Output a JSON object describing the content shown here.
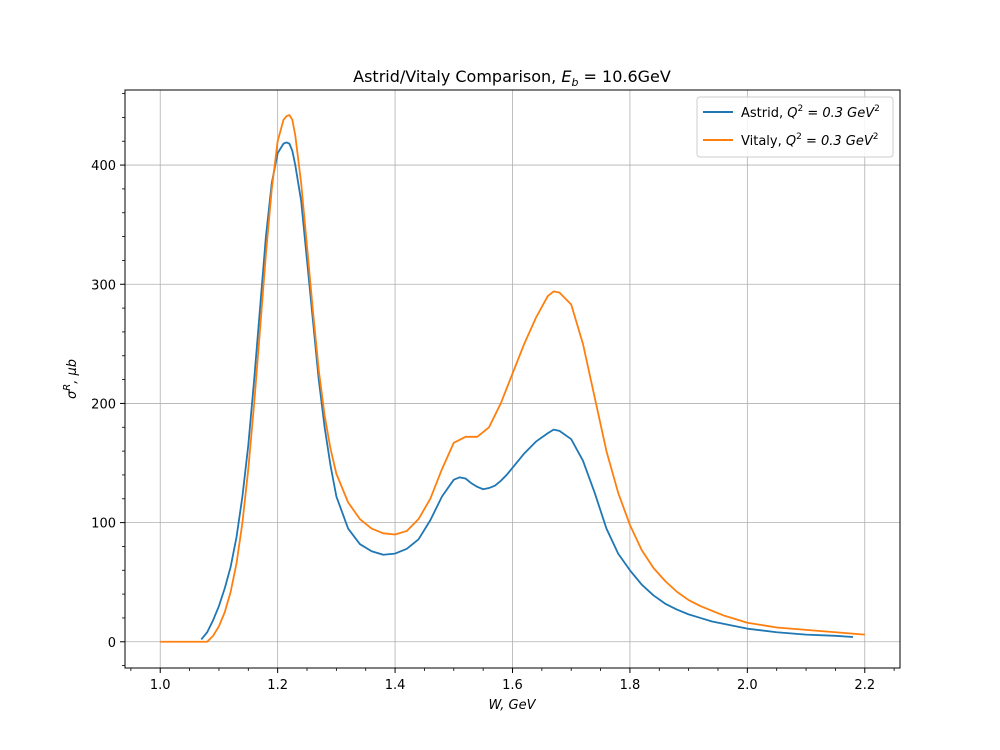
{
  "chart_data": {
    "type": "line",
    "title": "Astrid/Vitaly Comparison, E_b = 10.6GeV",
    "title_parts": {
      "prefix": "Astrid/Vitaly Comparison, ",
      "sym": "E",
      "sub": "b",
      "suffix": " = 10.6GeV"
    },
    "xlabel": "W, GeV",
    "ylabel": "σ^R, μb",
    "ylabel_parts": {
      "sym": "σ",
      "sup": "R",
      "suffix": ", μb"
    },
    "xlim": [
      0.94,
      2.26
    ],
    "ylim": [
      -22,
      463
    ],
    "x_ticks": [
      1.0,
      1.2,
      1.4,
      1.6,
      1.8,
      2.0,
      2.2
    ],
    "x_tick_labels": [
      "1.0",
      "1.2",
      "1.4",
      "1.6",
      "1.8",
      "2.0",
      "2.2"
    ],
    "y_ticks": [
      0,
      100,
      200,
      300,
      400
    ],
    "y_tick_labels": [
      "0",
      "100",
      "200",
      "300",
      "400"
    ],
    "grid": true,
    "legend_placement": "top-right",
    "series": [
      {
        "name": "Astrid, Q^2 = 0.3 GeV^2",
        "label_parts": {
          "prefix": "Astrid, ",
          "sym": "Q",
          "sup": "2",
          "mid": " = 0.3 GeV",
          "sup2": "2"
        },
        "color": "#1f77b4",
        "x": [
          1.07,
          1.08,
          1.09,
          1.1,
          1.11,
          1.12,
          1.13,
          1.14,
          1.15,
          1.16,
          1.17,
          1.18,
          1.19,
          1.2,
          1.21,
          1.215,
          1.22,
          1.225,
          1.23,
          1.24,
          1.25,
          1.26,
          1.27,
          1.28,
          1.29,
          1.3,
          1.32,
          1.34,
          1.36,
          1.38,
          1.4,
          1.42,
          1.44,
          1.46,
          1.48,
          1.5,
          1.51,
          1.52,
          1.53,
          1.54,
          1.55,
          1.56,
          1.57,
          1.58,
          1.59,
          1.6,
          1.62,
          1.64,
          1.66,
          1.67,
          1.68,
          1.7,
          1.72,
          1.74,
          1.76,
          1.78,
          1.8,
          1.82,
          1.84,
          1.86,
          1.88,
          1.9,
          1.92,
          1.94,
          1.96,
          1.98,
          2.0,
          2.05,
          2.1,
          2.15,
          2.18
        ],
        "y": [
          2,
          8,
          18,
          30,
          45,
          63,
          88,
          122,
          165,
          220,
          280,
          340,
          385,
          410,
          418,
          419,
          418,
          412,
          400,
          370,
          320,
          270,
          220,
          180,
          148,
          122,
          95,
          82,
          76,
          73,
          74,
          78,
          86,
          102,
          122,
          136,
          138,
          137,
          133,
          130,
          128,
          129,
          131,
          135,
          140,
          146,
          158,
          168,
          175,
          178,
          177,
          170,
          152,
          125,
          95,
          74,
          60,
          48,
          39,
          32,
          27,
          23,
          20,
          17,
          15,
          13,
          11,
          8,
          6,
          5,
          4
        ]
      },
      {
        "name": "Vitaly, Q^2 = 0.3 GeV^2",
        "label_parts": {
          "prefix": "Vitaly, ",
          "sym": "Q",
          "sup": "2",
          "mid": " = 0.3 GeV",
          "sup2": "2"
        },
        "color": "#ff7f0e",
        "x": [
          1.0,
          1.05,
          1.08,
          1.09,
          1.1,
          1.11,
          1.12,
          1.13,
          1.14,
          1.15,
          1.16,
          1.17,
          1.18,
          1.19,
          1.2,
          1.21,
          1.215,
          1.22,
          1.225,
          1.23,
          1.24,
          1.25,
          1.26,
          1.27,
          1.28,
          1.29,
          1.3,
          1.32,
          1.34,
          1.36,
          1.38,
          1.4,
          1.42,
          1.44,
          1.46,
          1.48,
          1.5,
          1.52,
          1.54,
          1.56,
          1.58,
          1.6,
          1.62,
          1.64,
          1.66,
          1.67,
          1.68,
          1.7,
          1.72,
          1.74,
          1.76,
          1.78,
          1.8,
          1.82,
          1.84,
          1.86,
          1.88,
          1.9,
          1.92,
          1.94,
          1.96,
          1.98,
          2.0,
          2.05,
          2.1,
          2.15,
          2.2
        ],
        "y": [
          0,
          0,
          0,
          5,
          13,
          25,
          42,
          66,
          100,
          145,
          200,
          262,
          325,
          380,
          420,
          438,
          441,
          442,
          438,
          425,
          385,
          332,
          278,
          228,
          190,
          162,
          141,
          117,
          103,
          95,
          91,
          90,
          93,
          103,
          120,
          145,
          167,
          172,
          172,
          180,
          200,
          225,
          250,
          272,
          290,
          294,
          293,
          283,
          250,
          205,
          160,
          125,
          98,
          77,
          62,
          51,
          42,
          35,
          30,
          26,
          22,
          19,
          16,
          12,
          10,
          8,
          6
        ]
      }
    ]
  }
}
